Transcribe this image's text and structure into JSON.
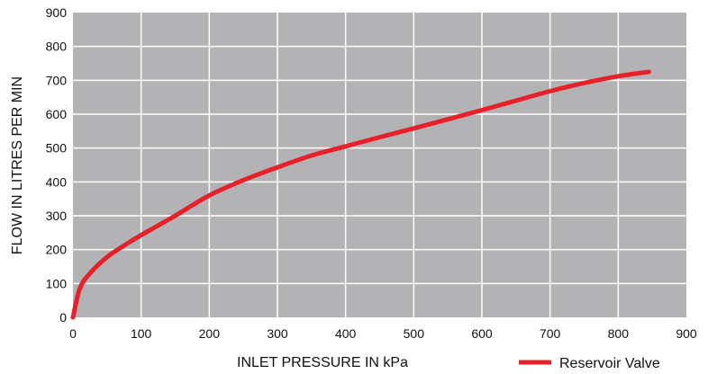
{
  "chart_data": {
    "type": "line",
    "title": "",
    "xlabel": "INLET PRESSURE IN kPa",
    "ylabel": "FLOW IN LITRES PER MIN",
    "xlim": [
      0,
      900
    ],
    "ylim": [
      0,
      900
    ],
    "x_ticks": [
      "0",
      "100",
      "200",
      "300",
      "400",
      "500",
      "600",
      "700",
      "800",
      "900"
    ],
    "y_ticks": [
      "0",
      "100",
      "200",
      "300",
      "400",
      "500",
      "600",
      "700",
      "800",
      "900"
    ],
    "grid": true,
    "legend_position": "bottom-right",
    "colors": {
      "background": "#b3b3b5",
      "grid": "#ffffff",
      "series": "#e8202a"
    },
    "series": [
      {
        "name": "Reservoir Valve",
        "x": [
          0,
          10,
          25,
          50,
          75,
          100,
          150,
          200,
          250,
          300,
          350,
          400,
          450,
          500,
          550,
          600,
          650,
          700,
          750,
          800,
          845
        ],
        "y": [
          0,
          85,
          130,
          178,
          212,
          243,
          300,
          360,
          405,
          443,
          478,
          505,
          532,
          558,
          585,
          612,
          640,
          668,
          692,
          712,
          725
        ]
      }
    ]
  }
}
